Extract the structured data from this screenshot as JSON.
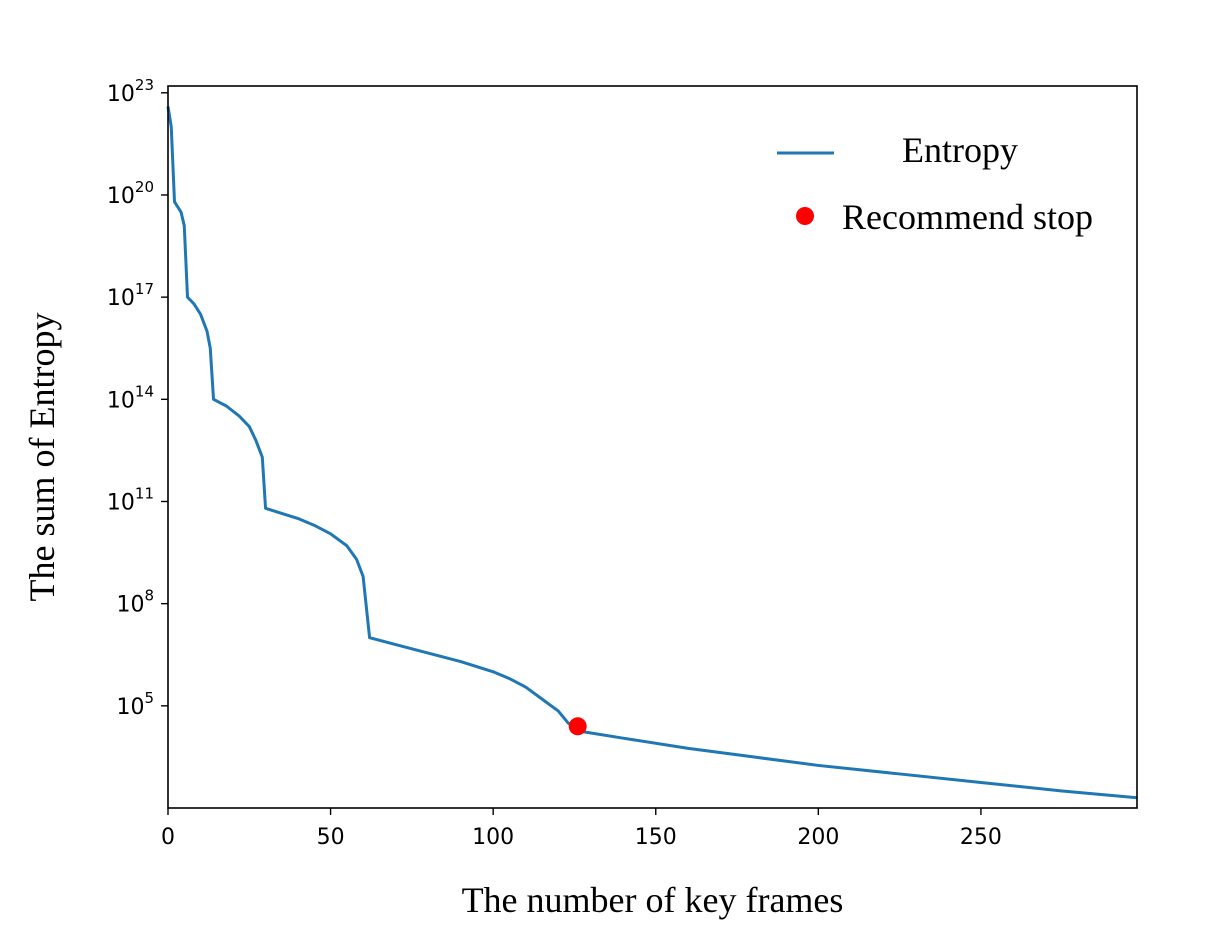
{
  "chart_data": {
    "type": "line",
    "title": "",
    "xlabel": "The number of key frames",
    "ylabel": "The sum of Entropy",
    "xlim": [
      0,
      298
    ],
    "ylim_log10": [
      2.0,
      23.2
    ],
    "y_scale": "log",
    "x_ticks": [
      0,
      50,
      100,
      150,
      200,
      250
    ],
    "y_ticks": [
      {
        "base": "10",
        "exp": "5",
        "log10": 5
      },
      {
        "base": "10",
        "exp": "8",
        "log10": 8
      },
      {
        "base": "10",
        "exp": "11",
        "log10": 11
      },
      {
        "base": "10",
        "exp": "14",
        "log10": 14
      },
      {
        "base": "10",
        "exp": "17",
        "log10": 17
      },
      {
        "base": "10",
        "exp": "20",
        "log10": 20
      },
      {
        "base": "10",
        "exp": "23",
        "log10": 23
      }
    ],
    "grid": false,
    "legend_position": "top-right",
    "series": [
      {
        "name": "Entropy",
        "kind": "line",
        "color": "#1f77b4",
        "points_log10": [
          [
            0,
            22.6
          ],
          [
            1,
            22.0
          ],
          [
            2,
            19.8
          ],
          [
            4,
            19.5
          ],
          [
            5,
            19.1
          ],
          [
            6,
            17.0
          ],
          [
            8,
            16.8
          ],
          [
            10,
            16.5
          ],
          [
            12,
            16.0
          ],
          [
            13,
            15.5
          ],
          [
            14,
            14.0
          ],
          [
            18,
            13.8
          ],
          [
            22,
            13.5
          ],
          [
            25,
            13.2
          ],
          [
            27,
            12.8
          ],
          [
            29,
            12.3
          ],
          [
            30,
            10.8
          ],
          [
            35,
            10.65
          ],
          [
            40,
            10.5
          ],
          [
            45,
            10.3
          ],
          [
            50,
            10.05
          ],
          [
            55,
            9.7
          ],
          [
            58,
            9.3
          ],
          [
            60,
            8.8
          ],
          [
            62,
            7.0
          ],
          [
            70,
            6.8
          ],
          [
            80,
            6.55
          ],
          [
            90,
            6.3
          ],
          [
            100,
            6.0
          ],
          [
            105,
            5.8
          ],
          [
            110,
            5.55
          ],
          [
            115,
            5.2
          ],
          [
            120,
            4.85
          ],
          [
            123,
            4.5
          ],
          [
            126,
            4.3
          ],
          [
            127,
            4.25
          ],
          [
            140,
            4.05
          ],
          [
            160,
            3.75
          ],
          [
            180,
            3.5
          ],
          [
            200,
            3.25
          ],
          [
            225,
            3.0
          ],
          [
            250,
            2.75
          ],
          [
            275,
            2.5
          ],
          [
            298,
            2.3
          ]
        ]
      },
      {
        "name": "Recommend stop",
        "kind": "scatter",
        "color": "#ff0000",
        "points_log10": [
          [
            126,
            4.4
          ]
        ]
      }
    ]
  }
}
